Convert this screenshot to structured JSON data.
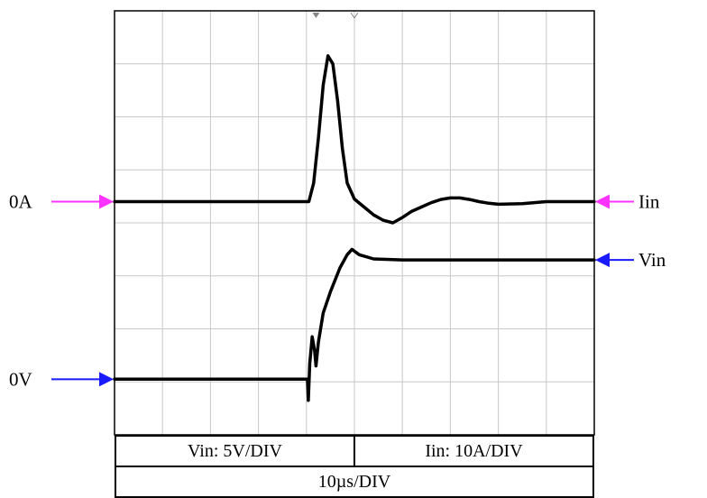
{
  "chart_data": {
    "type": "line",
    "title": "",
    "xlabel": "",
    "ylabel": "",
    "grid": true,
    "x_divisions": 10,
    "y_divisions": 8,
    "xlim": [
      0,
      10
    ],
    "ylim": [
      0,
      8
    ],
    "time_scale": "10µs/DIV",
    "series": [
      {
        "name": "Iin",
        "color": "#000000",
        "x": [
          0,
          4.05,
          4.15,
          4.25,
          4.35,
          4.45,
          4.55,
          4.65,
          4.75,
          4.85,
          5.0,
          5.2,
          5.4,
          5.6,
          5.8,
          6.0,
          6.2,
          6.4,
          6.6,
          6.8,
          7.0,
          7.2,
          7.4,
          7.6,
          7.8,
          8.0,
          8.5,
          9.0,
          10
        ],
        "y": [
          4.4,
          4.4,
          4.75,
          5.6,
          6.6,
          7.15,
          7.0,
          6.3,
          5.4,
          4.75,
          4.45,
          4.3,
          4.15,
          4.05,
          4.0,
          4.1,
          4.22,
          4.3,
          4.38,
          4.44,
          4.47,
          4.47,
          4.44,
          4.4,
          4.37,
          4.35,
          4.36,
          4.4,
          4.4
        ]
      },
      {
        "name": "Vin",
        "color": "#000000",
        "x": [
          0,
          4.02,
          4.04,
          4.07,
          4.12,
          4.17,
          4.2,
          4.25,
          4.35,
          4.5,
          4.7,
          4.85,
          4.95,
          5.1,
          5.4,
          6.0,
          7.0,
          8.0,
          9.0,
          10
        ],
        "y": [
          1.05,
          1.05,
          0.65,
          1.35,
          1.85,
          1.6,
          1.3,
          1.75,
          2.3,
          2.7,
          3.15,
          3.4,
          3.5,
          3.4,
          3.32,
          3.3,
          3.3,
          3.3,
          3.3,
          3.3
        ]
      }
    ],
    "markers": [
      {
        "text": "0A",
        "side": "left",
        "level": 4.4,
        "color": "#ff33ff"
      },
      {
        "text": "0V",
        "side": "left",
        "level": 1.05,
        "color": "#1a1aff"
      },
      {
        "text": "Iin",
        "side": "right",
        "level": 4.4,
        "color": "#ff33ff"
      },
      {
        "text": "Vin",
        "side": "right",
        "level": 3.3,
        "color": "#1a1aff"
      }
    ],
    "info": {
      "vin_scale": "Vin: 5V/DIV",
      "iin_scale": "Iin: 10A/DIV",
      "time_scale": "10µs/DIV"
    }
  }
}
